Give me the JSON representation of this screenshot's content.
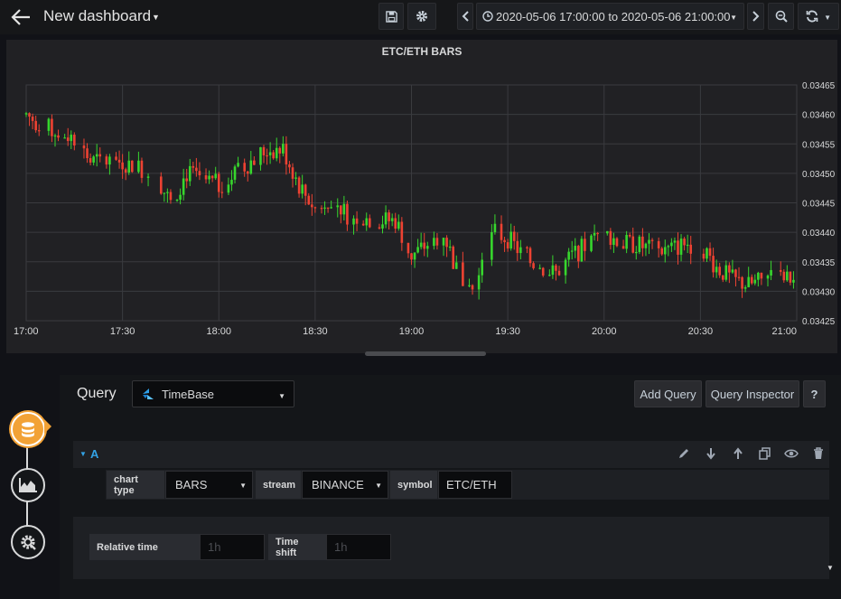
{
  "navbar": {
    "title": "New dashboard",
    "time_range": "2020-05-06 17:00:00 to 2020-05-06 21:00:00",
    "icons": [
      "back-arrow-icon",
      "save-icon",
      "settings-gear-icon",
      "chevron-left-icon",
      "clock-icon",
      "chevron-down-icon",
      "chevron-right-icon",
      "zoom-out-icon",
      "refresh-icon"
    ]
  },
  "panel": {
    "title": "ETC/ETH BARS"
  },
  "chart_data": {
    "type": "candlestick",
    "title": "ETC/ETH BARS",
    "x_tick_labels": [
      "17:00",
      "17:30",
      "18:00",
      "18:30",
      "19:00",
      "19:30",
      "20:00",
      "20:30",
      "21:00"
    ],
    "y_tick_labels": [
      "0.03465",
      "0.03460",
      "0.03455",
      "0.03450",
      "0.03445",
      "0.03440",
      "0.03435",
      "0.03430",
      "0.03425"
    ],
    "xlim": [
      "17:00",
      "21:00"
    ],
    "ylim": [
      0.03425,
      0.03465
    ],
    "y_axis_side": "right",
    "grid": true,
    "colors": {
      "up": "#37d62d",
      "down": "#ed4232",
      "background": "#212124",
      "grid": "#3a3b3f"
    },
    "close_series_approx": [
      {
        "time": "17:00",
        "value": 0.0346
      },
      {
        "time": "17:05",
        "value": 0.03458
      },
      {
        "time": "17:10",
        "value": 0.03457
      },
      {
        "time": "17:15",
        "value": 0.03456
      },
      {
        "time": "17:20",
        "value": 0.03452
      },
      {
        "time": "17:30",
        "value": 0.03452
      },
      {
        "time": "17:40",
        "value": 0.0345
      },
      {
        "time": "17:45",
        "value": 0.03445
      },
      {
        "time": "17:50",
        "value": 0.0345
      },
      {
        "time": "18:00",
        "value": 0.03448
      },
      {
        "time": "18:10",
        "value": 0.03452
      },
      {
        "time": "18:15",
        "value": 0.03454
      },
      {
        "time": "18:20",
        "value": 0.03454
      },
      {
        "time": "18:25",
        "value": 0.03448
      },
      {
        "time": "18:30",
        "value": 0.03444
      },
      {
        "time": "18:35",
        "value": 0.03446
      },
      {
        "time": "18:40",
        "value": 0.03443
      },
      {
        "time": "18:50",
        "value": 0.03442
      },
      {
        "time": "18:55",
        "value": 0.03442
      },
      {
        "time": "19:00",
        "value": 0.03436
      },
      {
        "time": "19:05",
        "value": 0.03438
      },
      {
        "time": "19:10",
        "value": 0.0344
      },
      {
        "time": "19:15",
        "value": 0.03432
      },
      {
        "time": "19:20",
        "value": 0.0343
      },
      {
        "time": "19:25",
        "value": 0.0344
      },
      {
        "time": "19:30",
        "value": 0.03439
      },
      {
        "time": "19:35",
        "value": 0.03436
      },
      {
        "time": "19:40",
        "value": 0.03434
      },
      {
        "time": "19:45",
        "value": 0.03433
      },
      {
        "time": "19:50",
        "value": 0.03436
      },
      {
        "time": "20:00",
        "value": 0.0344
      },
      {
        "time": "20:05",
        "value": 0.03438
      },
      {
        "time": "20:10",
        "value": 0.03438
      },
      {
        "time": "20:15",
        "value": 0.03437
      },
      {
        "time": "20:20",
        "value": 0.03437
      },
      {
        "time": "20:25",
        "value": 0.03438
      },
      {
        "time": "20:30",
        "value": 0.03438
      },
      {
        "time": "20:35",
        "value": 0.03434
      },
      {
        "time": "20:40",
        "value": 0.03432
      },
      {
        "time": "20:45",
        "value": 0.03431
      },
      {
        "time": "20:50",
        "value": 0.03432
      },
      {
        "time": "21:00",
        "value": 0.03432
      }
    ]
  },
  "query_editor": {
    "query_label": "Query",
    "datasource": "TimeBase",
    "add_query": "Add Query",
    "query_inspector": "Query Inspector",
    "help": "?",
    "query_ref": "A",
    "row_icons": [
      "pencil-icon",
      "arrow-down-icon",
      "arrow-up-icon",
      "duplicate-icon",
      "eye-icon",
      "trash-icon"
    ],
    "fields": {
      "chart_type_label": "chart type",
      "chart_type_value": "BARS",
      "stream_label": "stream",
      "stream_value": "BINANCE",
      "symbol_label": "symbol",
      "symbol_value": "ETC/ETH"
    },
    "options": {
      "relative_time_label": "Relative time",
      "relative_time_placeholder": "1h",
      "time_shift_label": "Time shift",
      "time_shift_placeholder": "1h"
    }
  },
  "sidebar": {
    "icons": [
      "database-icon",
      "visualization-icon",
      "general-settings-icon"
    ]
  }
}
